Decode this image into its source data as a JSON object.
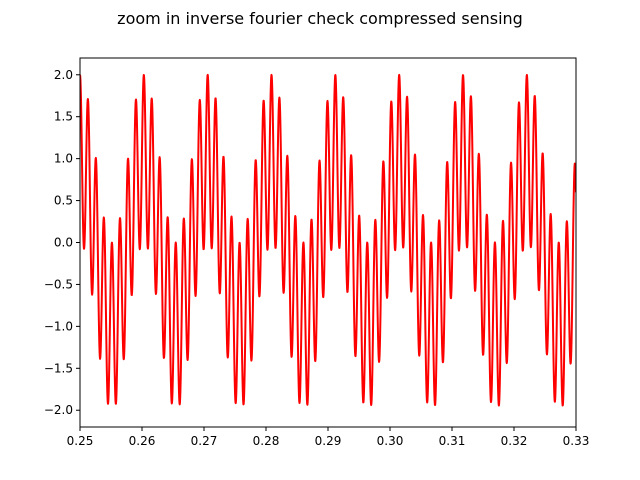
{
  "chart_data": {
    "type": "line",
    "title": "zoom in inverse fourier check compressed sensing",
    "xlabel": "",
    "ylabel": "",
    "xlim": [
      0.25,
      0.33
    ],
    "ylim": [
      -2.2,
      2.2
    ],
    "xticks": [
      "0.25",
      "0.26",
      "0.27",
      "0.28",
      "0.29",
      "0.30",
      "0.31",
      "0.32",
      "0.33"
    ],
    "yticks": [
      "−2.0",
      "−1.5",
      "−1.0",
      "−0.5",
      "0.0",
      "0.5",
      "1.0",
      "1.5",
      "2.0"
    ],
    "grid": false,
    "legend": "none",
    "series": [
      {
        "color": "#ff0000",
        "expression": "sin(2*pi*97*x) + sin(2*pi*777*x)",
        "x_range": [
          0.25,
          0.33
        ]
      }
    ]
  }
}
